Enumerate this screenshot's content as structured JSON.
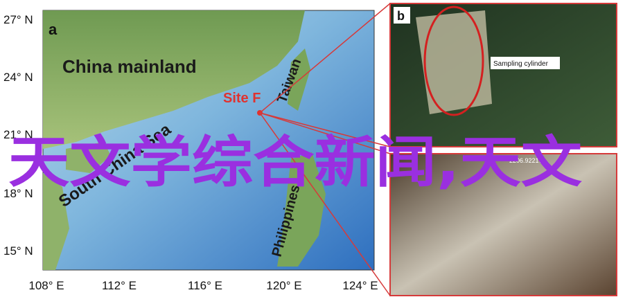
{
  "map": {
    "panel_label": "a",
    "lat_ticks": [
      "27° N",
      "24° N",
      "21° N",
      "18° N",
      "15° N"
    ],
    "lon_ticks": [
      "108° E",
      "112° E",
      "116° E",
      "120° E",
      "124° E"
    ],
    "labels": {
      "mainland": "China mainland",
      "site": "Site F",
      "taiwan": "Taiwan",
      "sea": "South China Sea",
      "philippines": "Philippines"
    }
  },
  "photo_b": {
    "panel_label": "b",
    "callout": "Sampling cylinder"
  },
  "photo_c": {
    "stamp": "2206.92217"
  },
  "overlay": "天文学综合新闻,天文"
}
